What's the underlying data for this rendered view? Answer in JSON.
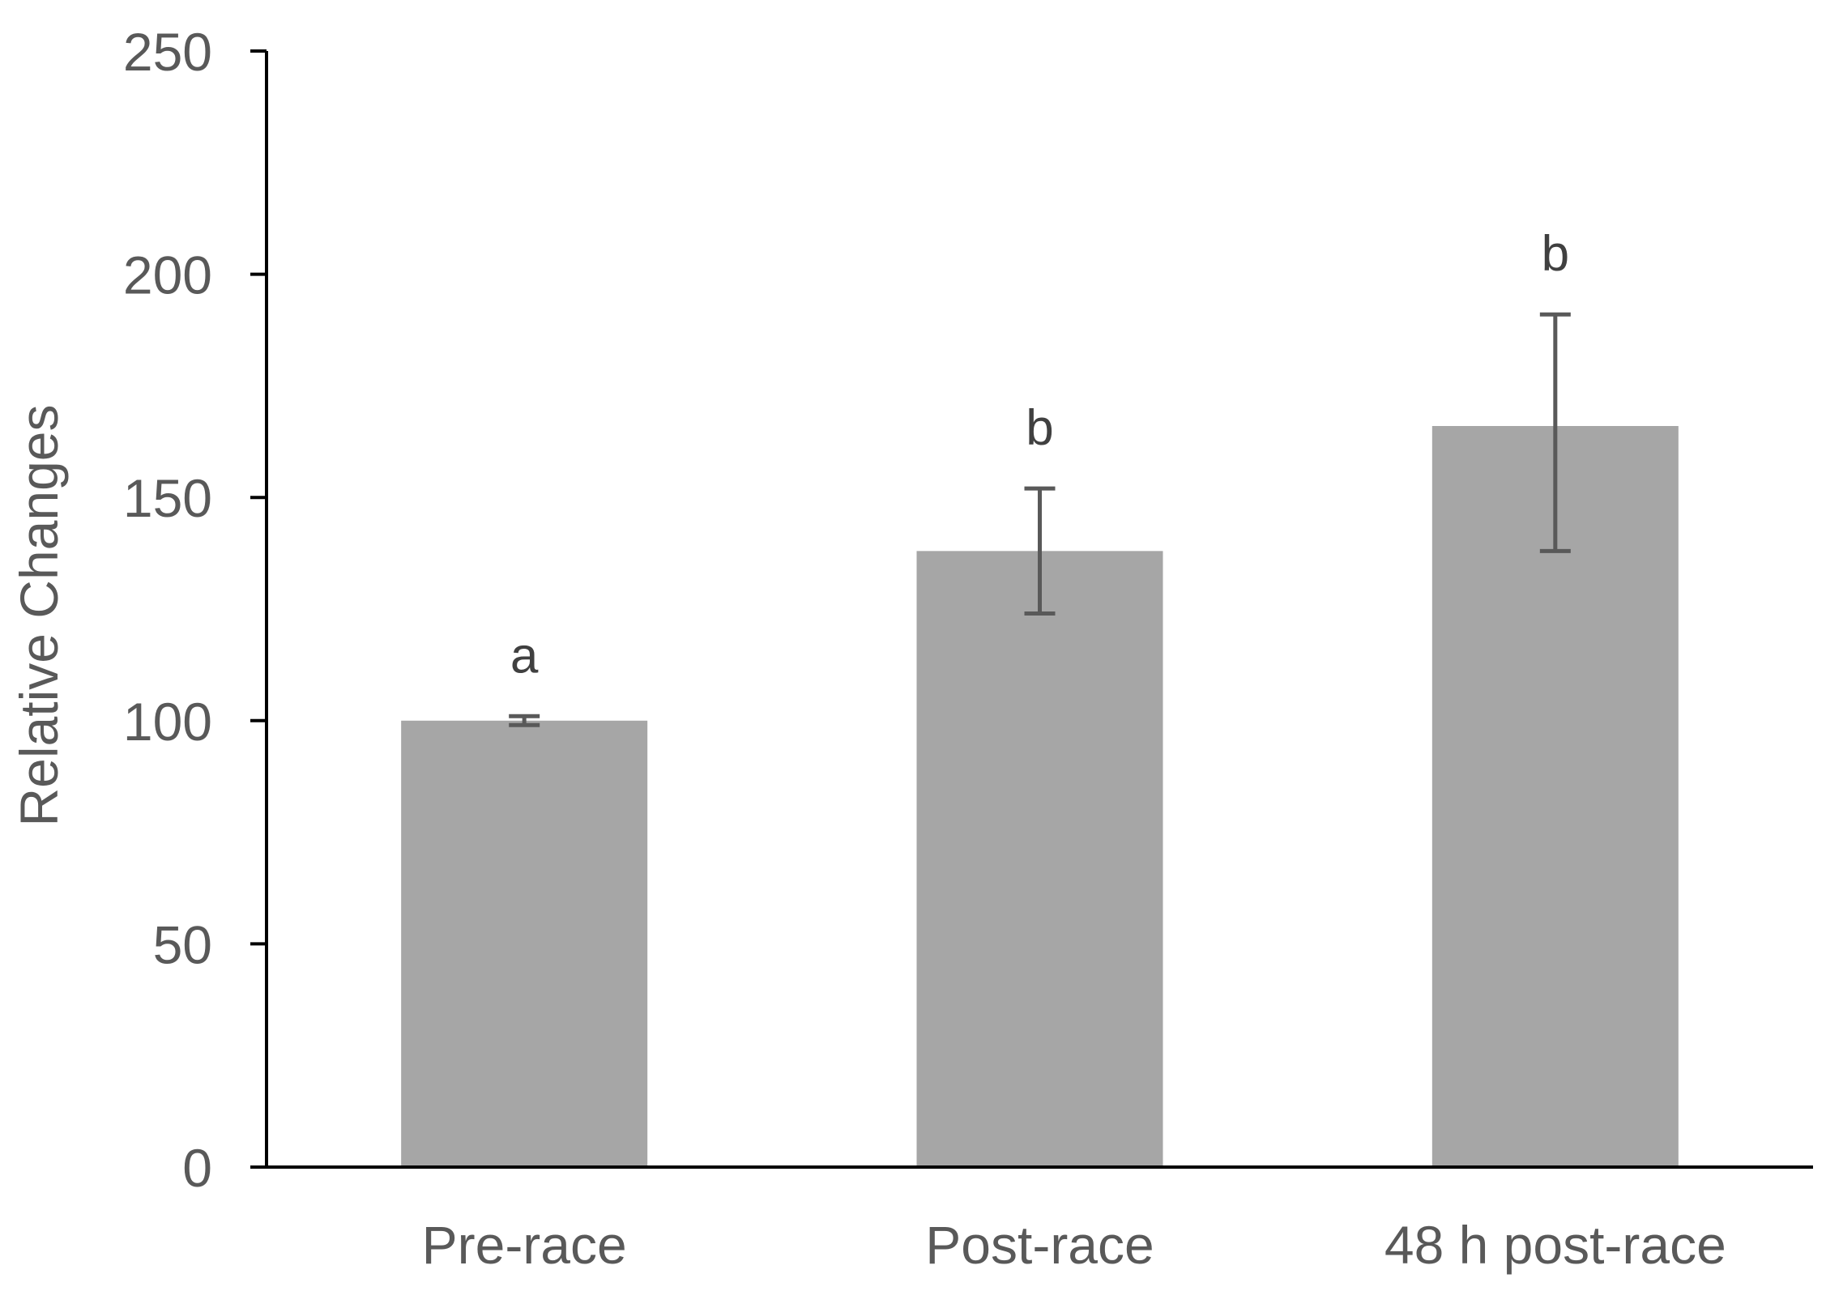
{
  "chart_data": {
    "type": "bar",
    "categories": [
      "Pre-race",
      "Post-race",
      "48 h post-race"
    ],
    "values": [
      100,
      138,
      166
    ],
    "error_low": [
      99,
      124,
      138
    ],
    "error_high": [
      101,
      152,
      191
    ],
    "significance_labels": [
      "a",
      "b",
      "b"
    ],
    "title": "",
    "xlabel": "",
    "ylabel": "Relative Changes",
    "ylim": [
      0,
      250
    ],
    "yticks": [
      0,
      50,
      100,
      150,
      200,
      250
    ],
    "grid": false,
    "legend": "none",
    "colors": {
      "bar": "#a6a6a6",
      "error_bar": "#595959",
      "axis": "#000000",
      "text": "#595959",
      "label_text": "#404040"
    }
  }
}
